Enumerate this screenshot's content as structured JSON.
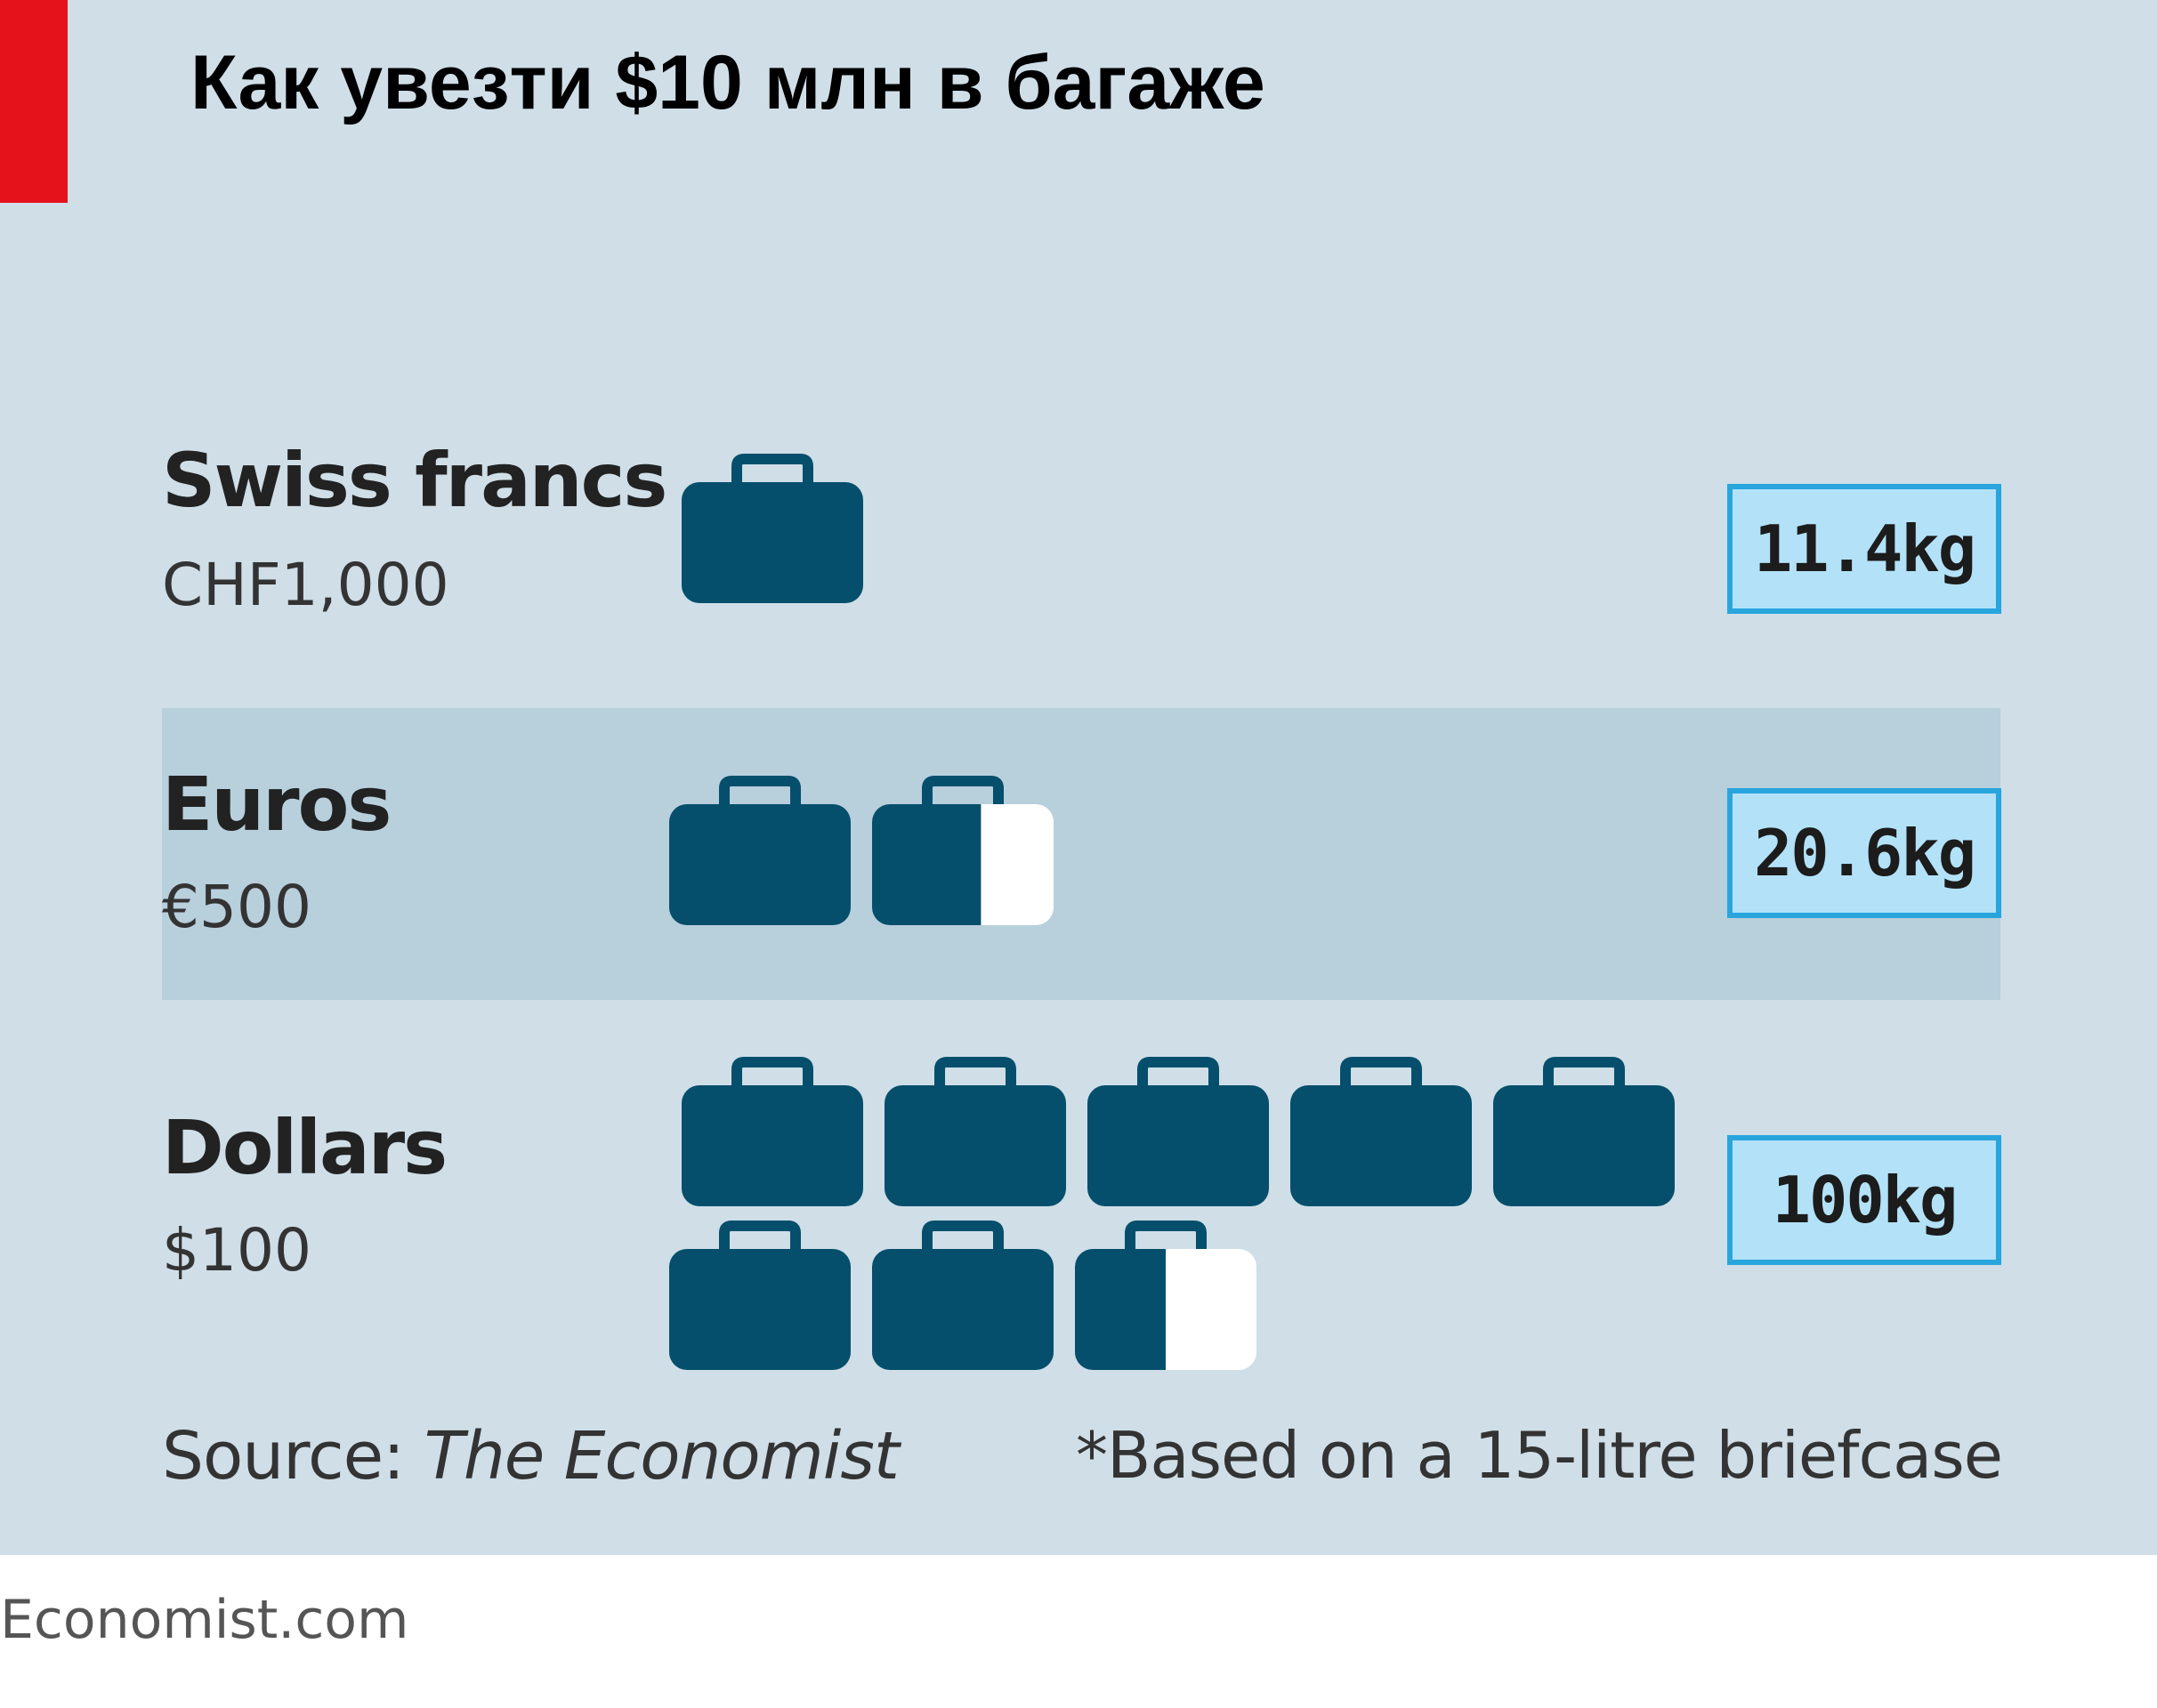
{
  "title": "Как увезти $10 млн в багаже",
  "colors": {
    "background": "#cfdee7",
    "highlight_band": "#b8cfdc",
    "briefcase": "#054f6c",
    "briefcase_empty": "#ffffff",
    "accent_red": "#e5121c",
    "weight_box_fill": "#b3e2f8",
    "weight_box_border": "#29a5dd"
  },
  "chart_data": {
    "type": "pictogram",
    "unit_icon": "briefcase-icon",
    "rows": [
      {
        "currency": "Swiss francs",
        "denomination": "CHF1,000",
        "briefcases": 1.0,
        "weight": "11.4kg"
      },
      {
        "currency": "Euros",
        "denomination": "€500",
        "briefcases": 1.6,
        "weight": "20.6kg"
      },
      {
        "currency": "Dollars",
        "denomination": "$100",
        "briefcases": 7.5,
        "weight": "100kg"
      }
    ]
  },
  "footer": {
    "source_label": "Source: ",
    "source_name": "The Economist",
    "footnote": "*Based on a 15-litre briefcase",
    "credit": "Economist.com"
  }
}
